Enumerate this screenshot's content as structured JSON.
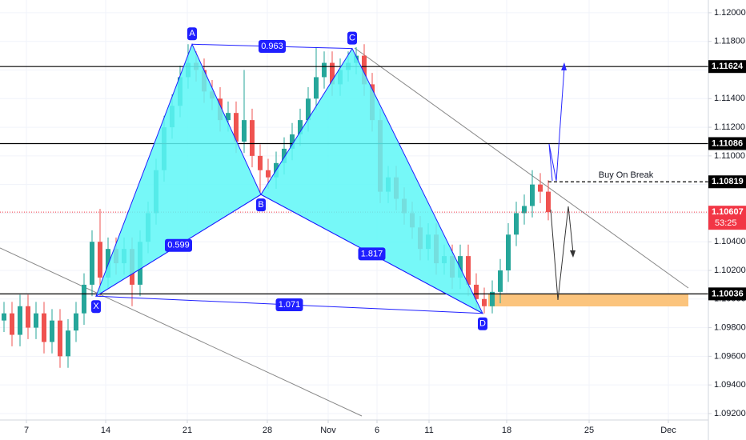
{
  "chart_data": {
    "type": "candlestick",
    "x": [
      0,
      1,
      2,
      3,
      4,
      5,
      6,
      7,
      8,
      9,
      10,
      11,
      12,
      13,
      14,
      15,
      16,
      17,
      18,
      19,
      20,
      21,
      22,
      23,
      24,
      25,
      26,
      27,
      28,
      29,
      30,
      31,
      32,
      33,
      34,
      35,
      36,
      37,
      38,
      39,
      40,
      41,
      42,
      43,
      44,
      45,
      46,
      47,
      48,
      49,
      50,
      51,
      52,
      53,
      54,
      55,
      56,
      57,
      58,
      59,
      60,
      61,
      62,
      63,
      64,
      65,
      66,
      67,
      68
    ],
    "open": [
      1.0985,
      1.099,
      1.0975,
      1.0995,
      1.098,
      1.099,
      1.097,
      1.0985,
      1.096,
      1.0978,
      1.099,
      1.101,
      1.104,
      1.1015,
      1.1035,
      1.1025,
      1.1035,
      1.101,
      1.104,
      1.106,
      1.109,
      1.112,
      1.1135,
      1.1155,
      1.1165,
      1.116,
      1.1145,
      1.114,
      1.1125,
      1.113,
      1.111,
      1.1125,
      1.11,
      1.109,
      1.1085,
      1.1095,
      1.1105,
      1.1115,
      1.1125,
      1.114,
      1.1155,
      1.1165,
      1.115,
      1.116,
      1.1165,
      1.117,
      1.115,
      1.1125,
      1.1075,
      1.1085,
      1.107,
      1.106,
      1.105,
      1.1035,
      1.1045,
      1.1025,
      1.103,
      1.1015,
      1.103,
      1.101,
      1.1,
      1.0995,
      1.1005,
      1.102,
      1.1045,
      1.106,
      1.1065,
      1.108,
      1.1075
    ],
    "high": [
      1.0998,
      1.0998,
      1.1003,
      1.1003,
      1.0998,
      1.0998,
      1.0993,
      1.0993,
      1.0986,
      1.0998,
      1.1018,
      1.1048,
      1.1063,
      1.1043,
      1.1043,
      1.1043,
      1.1043,
      1.1048,
      1.1068,
      1.1098,
      1.1128,
      1.1143,
      1.1163,
      1.1178,
      1.1173,
      1.1168,
      1.1153,
      1.1148,
      1.1138,
      1.1138,
      1.116,
      1.1133,
      1.1108,
      1.1098,
      1.1103,
      1.1113,
      1.1123,
      1.1133,
      1.1148,
      1.1176,
      1.1173,
      1.1173,
      1.1168,
      1.1173,
      1.1176,
      1.1178,
      1.1158,
      1.1133,
      1.1093,
      1.1093,
      1.1078,
      1.1068,
      1.1058,
      1.1053,
      1.1053,
      1.1038,
      1.1038,
      1.1038,
      1.1038,
      1.1018,
      1.1008,
      1.1013,
      1.1028,
      1.1053,
      1.1068,
      1.1073,
      1.109,
      1.1088,
      1.1083
    ],
    "low": [
      1.0977,
      1.0967,
      1.0967,
      1.0972,
      1.0972,
      1.0962,
      1.0962,
      1.0952,
      1.0952,
      1.097,
      1.0982,
      1.1002,
      1.1002,
      1.1007,
      1.1017,
      1.1017,
      1.0995,
      1.1002,
      1.1032,
      1.1052,
      1.1082,
      1.1112,
      1.1127,
      1.1147,
      1.1152,
      1.1137,
      1.1132,
      1.1117,
      1.1117,
      1.1102,
      1.1102,
      1.1092,
      1.1073,
      1.1077,
      1.1077,
      1.1087,
      1.1097,
      1.1107,
      1.1117,
      1.1132,
      1.1147,
      1.1142,
      1.1142,
      1.1152,
      1.1157,
      1.1142,
      1.1117,
      1.1067,
      1.1067,
      1.1062,
      1.1052,
      1.1042,
      1.1027,
      1.1027,
      1.1017,
      1.1017,
      1.1007,
      1.1007,
      1.1002,
      1.0992,
      1.099,
      1.099,
      1.0997,
      1.1012,
      1.1037,
      1.1052,
      1.1057,
      1.1067,
      1.1055
    ],
    "close": [
      1.099,
      1.0975,
      1.0995,
      1.098,
      1.099,
      1.097,
      1.0985,
      1.096,
      1.0978,
      1.099,
      1.101,
      1.104,
      1.1015,
      1.1035,
      1.1025,
      1.1035,
      1.101,
      1.104,
      1.106,
      1.109,
      1.112,
      1.1135,
      1.1155,
      1.1165,
      1.116,
      1.1145,
      1.114,
      1.1125,
      1.113,
      1.111,
      1.1125,
      1.11,
      1.109,
      1.1085,
      1.1095,
      1.1105,
      1.1115,
      1.1125,
      1.114,
      1.1155,
      1.1165,
      1.115,
      1.116,
      1.1165,
      1.117,
      1.115,
      1.1125,
      1.1075,
      1.1085,
      1.107,
      1.106,
      1.105,
      1.1035,
      1.1045,
      1.1025,
      1.103,
      1.1015,
      1.103,
      1.101,
      1.1,
      1.0995,
      1.1005,
      1.102,
      1.1045,
      1.106,
      1.1065,
      1.108,
      1.1075,
      1.10607
    ],
    "up_color": "#26a69a",
    "down_color": "#ef5350",
    "xlim": [
      -0.5,
      88
    ],
    "ylim": [
      1.09155,
      1.12089
    ],
    "xticks": [
      {
        "value": 2.8,
        "label": "7"
      },
      {
        "value": 12.7,
        "label": "14"
      },
      {
        "value": 22.9,
        "label": "21"
      },
      {
        "value": 32.9,
        "label": "28"
      },
      {
        "value": 40.5,
        "label": "Nov"
      },
      {
        "value": 46.6,
        "label": "6"
      },
      {
        "value": 53.1,
        "label": "11"
      },
      {
        "value": 62.8,
        "label": "18"
      },
      {
        "value": 73.1,
        "label": "25"
      },
      {
        "value": 83.0,
        "label": "Dec"
      }
    ],
    "yticks": [
      {
        "value": 1.12,
        "label": "1.12000"
      },
      {
        "value": 1.118,
        "label": "1.11800"
      },
      {
        "value": 1.116,
        "label": "1.11600"
      },
      {
        "value": 1.114,
        "label": "1.11400"
      },
      {
        "value": 1.112,
        "label": "1.11200"
      },
      {
        "value": 1.11,
        "label": "1.11000"
      },
      {
        "value": 1.108,
        "label": "1.10800"
      },
      {
        "value": 1.106,
        "label": "1.10600"
      },
      {
        "value": 1.104,
        "label": "1.10400"
      },
      {
        "value": 1.102,
        "label": "1.10200"
      },
      {
        "value": 1.1,
        "label": "1.10000"
      },
      {
        "value": 1.098,
        "label": "1.09800"
      },
      {
        "value": 1.096,
        "label": "1.09600"
      },
      {
        "value": 1.094,
        "label": "1.09400"
      },
      {
        "value": 1.092,
        "label": "1.09200"
      }
    ],
    "grid": true,
    "pattern": {
      "points": [
        {
          "label": "X",
          "x": 11.5,
          "y": 1.1002
        },
        {
          "label": "A",
          "x": 23.5,
          "y": 1.1178
        },
        {
          "label": "B",
          "x": 32.1,
          "y": 1.1073
        },
        {
          "label": "C",
          "x": 43.5,
          "y": 1.1175
        },
        {
          "label": "D",
          "x": 59.8,
          "y": 1.099
        }
      ],
      "ratios": [
        {
          "value": 0.599,
          "from": "X",
          "to": "B"
        },
        {
          "value": 0.963,
          "from": "A",
          "to": "C"
        },
        {
          "value": 1.817,
          "from": "B",
          "to": "D"
        },
        {
          "value": 1.071,
          "from": "X",
          "to": "D"
        }
      ],
      "fill": "#5ef7f7",
      "line_color": "#1f1fff"
    },
    "levels": [
      {
        "value": 1.11624,
        "style": "solid"
      },
      {
        "value": 1.11086,
        "style": "solid"
      },
      {
        "value": 1.10819,
        "style": "dashed",
        "label": "Buy On Break"
      },
      {
        "value": 1.10036,
        "style": "solid"
      }
    ],
    "current_price": {
      "value": 1.10607,
      "countdown": "53:25",
      "color": "#f23645"
    }
  }
}
